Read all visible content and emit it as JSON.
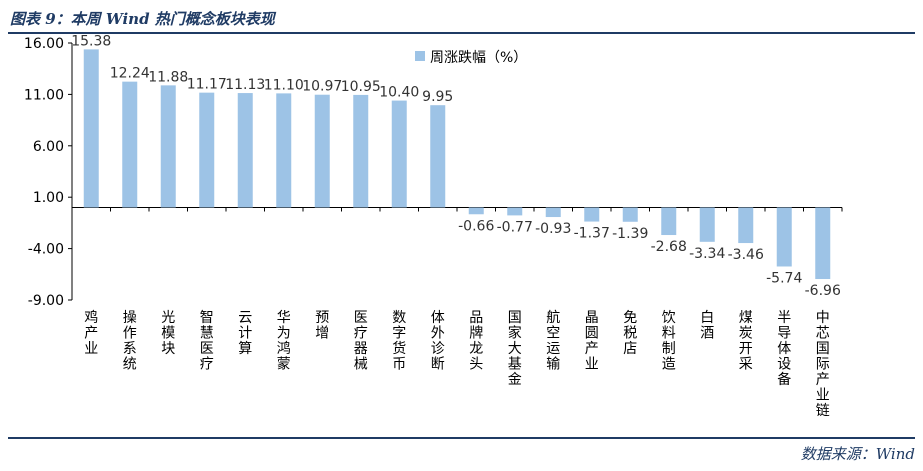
{
  "header": {
    "title": "图表 9：本周 Wind 热门概念板块表现"
  },
  "source": "数据来源：Wind",
  "chart_data": {
    "type": "bar",
    "title": "",
    "xlabel": "",
    "ylabel": "",
    "ylim": [
      -9,
      16
    ],
    "yticks": [
      "16.00",
      "11.00",
      "6.00",
      "1.00",
      "-4.00",
      "-9.00"
    ],
    "ytick_values": [
      16,
      11,
      6,
      1,
      -4,
      -9
    ],
    "legend_position": "top",
    "bar_color": "#9dc3e6",
    "series": [
      {
        "name": "周涨跌幅（%）",
        "values": [
          15.38,
          12.24,
          11.88,
          11.17,
          11.13,
          11.1,
          10.97,
          10.95,
          10.4,
          9.95,
          -0.66,
          -0.77,
          -0.93,
          -1.37,
          -1.39,
          -2.68,
          -3.34,
          -3.46,
          -5.74,
          -6.96
        ],
        "labels": [
          "15.38",
          "12.24",
          "11.88",
          "11.17",
          "11.13",
          "11.10",
          "10.97",
          "10.95",
          "10.40",
          "9.95",
          "-0.66",
          "-0.77",
          "-0.93",
          "-1.37",
          "-1.39",
          "-2.68",
          "-3.34",
          "-3.46",
          "-5.74",
          "-6.96"
        ]
      }
    ],
    "categories": [
      "鸡产业",
      "操作系统",
      "光模块",
      "智慧医疗",
      "云计算",
      "华为鸿蒙",
      "预增",
      "医疗器械",
      "数字货币",
      "体外诊断",
      "品牌龙头",
      "国家大基金",
      "航空运输",
      "晶圆产业",
      "免税店",
      "饮料制造",
      "白酒",
      "煤炭开采",
      "半导体设备",
      "中芯国际产业链"
    ]
  }
}
